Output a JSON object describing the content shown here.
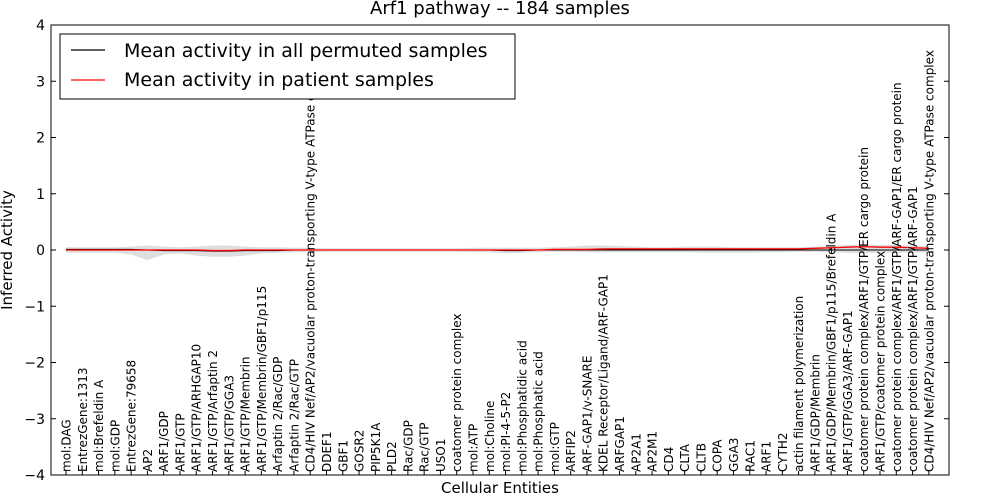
{
  "chart_data": {
    "type": "line",
    "title": "Arf1 pathway -- 184 samples",
    "xlabel": "Cellular Entities",
    "ylabel": "Inferred Activity",
    "ylim": [
      -4,
      4
    ],
    "yticks": [
      "4",
      "3",
      "2",
      "1",
      "0",
      "−1",
      "−2",
      "−3",
      "−4"
    ],
    "legend_position": "top-left",
    "colors": {
      "permuted": "#000000",
      "patient": "#ff0000",
      "band": "#d3d3d3"
    },
    "categories": [
      "mol:DAG",
      "EntrezGene:1313",
      "mol:Brefeldin A",
      "mol:GDP",
      "EntrezGene:79658",
      "AP2",
      "ARF1/GDP",
      "ARF1/GTP",
      "ARF1/GTP/ARHGAP10",
      "ARF1/GTP/Arfaptin 2",
      "ARF1/GTP/GGA3",
      "ARF1/GTP/Membrin",
      "ARF1/GTP/Membrin/GBF1/p115",
      "Arfaptin 2/Rac/GDP",
      "Arfaptin 2/Rac/GTP",
      "CD4/HIV Nef/AP2/vacuolar proton-transporting V-type ATPase complex",
      "DDEF1",
      "GBF1",
      "GOSR2",
      "PIP5K1A",
      "PLD2",
      "Rac/GDP",
      "Rac/GTP",
      "USO1",
      "coatomer protein complex",
      "mol:ATP",
      "mol:Choline",
      "mol:PI-4-5-P2",
      "mol:Phosphatidic acid",
      "mol:Phosphatic acid",
      "mol:GTP",
      "ARFIP2",
      "ARF-GAP1/v-SNARE",
      "KDEL Receptor/Ligand/ARF-GAP1",
      "ARFGAP1",
      "AP2A1",
      "AP2M1",
      "CD4",
      "CLTA",
      "CLTB",
      "COPA",
      "GGA3",
      "RAC1",
      "ARF1",
      "CYTH2",
      "actin filament polymerization",
      "ARF1/GDP/Membrin",
      "ARF1/GDP/Membrin/GBF1/p115/Brefeldin A",
      "ARF1/GTP/GGA3/ARF-GAP1",
      "coatomer protein complex/ARF1/GTP/ER cargo protein",
      "ARF1/GTP/coatomer protein complex",
      "coatomer protein complex/ARF1/GTP/ARF-GAP1/ER cargo protein",
      "coatomer protein complex/ARF1/GTP/ARF-GAP1",
      "CD4/HIV Nef/AP2/vacuolar proton-transporting V-type ATPase complex"
    ],
    "series": [
      {
        "name": "Mean activity in all permuted samples",
        "color": "#000000",
        "values": [
          0.01,
          0.01,
          0.01,
          0.01,
          0.01,
          0.0,
          -0.01,
          -0.01,
          -0.01,
          -0.02,
          -0.02,
          -0.01,
          -0.01,
          -0.01,
          0.0,
          0.0,
          0.0,
          0.0,
          0.0,
          0.0,
          0.0,
          0.0,
          0.0,
          0.0,
          0.0,
          0.0,
          0.0,
          -0.01,
          -0.01,
          0.0,
          0.0,
          0.0,
          0.0,
          0.0,
          0.0,
          0.0,
          0.0,
          0.0,
          0.0,
          0.0,
          0.0,
          0.0,
          0.0,
          0.0,
          0.0,
          0.0,
          0.0,
          0.0,
          0.0,
          0.0,
          0.0,
          0.0,
          0.0,
          0.0
        ]
      },
      {
        "name": "Mean activity in patient samples",
        "color": "#ff0000",
        "values": [
          0.0,
          0.0,
          0.0,
          0.0,
          0.0,
          0.0,
          0.0,
          0.0,
          0.0,
          -0.01,
          -0.01,
          0.0,
          0.0,
          0.0,
          0.0,
          0.0,
          0.0,
          0.0,
          0.0,
          0.0,
          0.0,
          0.0,
          0.0,
          0.0,
          0.0,
          0.0,
          0.0,
          0.0,
          0.0,
          0.0,
          0.01,
          0.01,
          0.01,
          0.02,
          0.02,
          0.02,
          0.02,
          0.02,
          0.02,
          0.02,
          0.02,
          0.02,
          0.02,
          0.02,
          0.02,
          0.02,
          0.03,
          0.04,
          0.05,
          0.06,
          0.05,
          0.05,
          0.04,
          0.03
        ]
      }
    ],
    "band_upper": [
      0.05,
      0.05,
      0.05,
      0.05,
      0.06,
      0.08,
      0.06,
      0.05,
      0.06,
      0.08,
      0.08,
      0.06,
      0.05,
      0.05,
      0.04,
      0.04,
      0.03,
      0.03,
      0.03,
      0.03,
      0.03,
      0.03,
      0.03,
      0.03,
      0.03,
      0.04,
      0.04,
      0.04,
      0.04,
      0.04,
      0.05,
      0.06,
      0.08,
      0.08,
      0.07,
      0.06,
      0.05,
      0.05,
      0.06,
      0.06,
      0.06,
      0.05,
      0.05,
      0.05,
      0.05,
      0.05,
      0.06,
      0.07,
      0.09,
      0.1,
      0.09,
      0.09,
      0.08,
      0.06
    ],
    "band_lower": [
      -0.05,
      -0.05,
      -0.05,
      -0.05,
      -0.08,
      -0.18,
      -0.08,
      -0.06,
      -0.1,
      -0.12,
      -0.12,
      -0.1,
      -0.06,
      -0.05,
      -0.04,
      -0.04,
      -0.03,
      -0.03,
      -0.03,
      -0.03,
      -0.03,
      -0.03,
      -0.03,
      -0.03,
      -0.03,
      -0.04,
      -0.04,
      -0.06,
      -0.05,
      -0.04,
      -0.03,
      -0.03,
      -0.04,
      -0.04,
      -0.04,
      -0.04,
      -0.04,
      -0.04,
      -0.04,
      -0.05,
      -0.05,
      -0.05,
      -0.05,
      -0.04,
      -0.04,
      -0.03,
      -0.03,
      -0.04,
      -0.05,
      -0.06,
      -0.05,
      -0.05,
      -0.05,
      -0.04
    ]
  }
}
